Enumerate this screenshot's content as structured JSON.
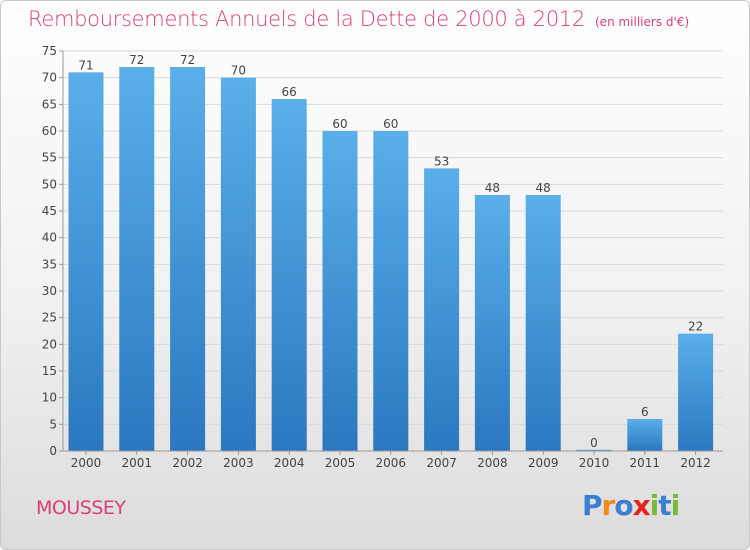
{
  "header": {
    "title": "Remboursements Annuels de la Dette de 2000 à 2012",
    "unit": "(en milliers d'€)"
  },
  "footer": {
    "commune": "MOUSSEY",
    "brand_letters": [
      {
        "char": "P",
        "color": "#3a7fd0"
      },
      {
        "char": "r",
        "color": "#f08a1c"
      },
      {
        "char": "o",
        "color": "#3a7fd0"
      },
      {
        "char": "x",
        "color": "#e2261d"
      },
      {
        "char": "i",
        "color": "#7cb83a"
      },
      {
        "char": "t",
        "color": "#3a7fd0"
      },
      {
        "char": "i",
        "color": "#7cb83a"
      }
    ]
  },
  "colors": {
    "title": "#d8407a",
    "bar_top": "#5aafea",
    "bar_bottom": "#2a78c0",
    "grid": "#d9d9d9",
    "axis_text": "#444444"
  },
  "chart_data": {
    "type": "bar",
    "categories": [
      "2000",
      "2001",
      "2002",
      "2003",
      "2004",
      "2005",
      "2006",
      "2007",
      "2008",
      "2009",
      "2010",
      "2011",
      "2012"
    ],
    "values": [
      71,
      72,
      72,
      70,
      66,
      60,
      60,
      53,
      48,
      48,
      0,
      6,
      22
    ],
    "ylim": [
      0,
      75
    ],
    "yticks": [
      0,
      5,
      10,
      15,
      20,
      25,
      30,
      35,
      40,
      45,
      50,
      55,
      60,
      65,
      70,
      75
    ],
    "grid": true,
    "data_labels": true
  }
}
